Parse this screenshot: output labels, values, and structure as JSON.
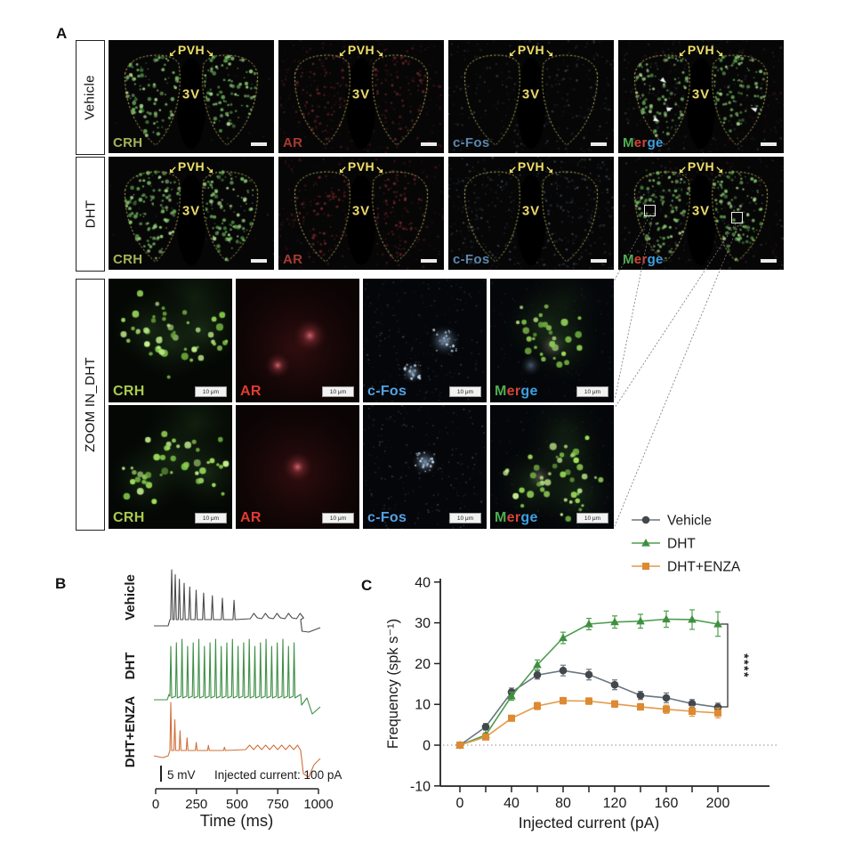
{
  "figure": {
    "panel_a_label": "A",
    "panel_b_label": "B",
    "panel_c_label": "C"
  },
  "panel_a": {
    "region_label": "PVH",
    "arrow_left": "↙",
    "arrow_right": "↘",
    "ventricle_label": "3V",
    "rows": [
      {
        "side_label": "Vehicle"
      },
      {
        "side_label": "DHT"
      }
    ],
    "zoom_side_label": "ZOOM IN_DHT",
    "zoom_scale_label": "10 μm",
    "channels": [
      {
        "name": "CRH",
        "label_color": "#a4b258",
        "zoom_label_color": "#a9c94f"
      },
      {
        "name": "AR",
        "label_color": "#a63a32",
        "zoom_label_color": "#e23c2e"
      },
      {
        "name": "c-Fos",
        "label_color": "#5c86ad",
        "zoom_label_color": "#55a2e4"
      },
      {
        "name": "Merge",
        "parts": [
          {
            "text": "M",
            "color": "#4fae4f"
          },
          {
            "text": "er",
            "color": "#d84338"
          },
          {
            "text": "ge",
            "color": "#3f9fe0"
          }
        ]
      }
    ],
    "outline_color": "#cfc468",
    "label_color": "#ecd96b"
  },
  "panel_b": {
    "traces": [
      {
        "name": "Vehicle",
        "color": "#4a4a4a",
        "label_color": "#3c3c3c"
      },
      {
        "name": "DHT",
        "color": "#3f8f46",
        "label_color": "#3f8f46"
      },
      {
        "name": "DHT+ENZA",
        "color": "#d2703a",
        "label_color": "#d2812f"
      }
    ],
    "scale_bar_label": "5 mV",
    "stim_label": "Injected current: 100 pA",
    "x_ticks": [
      0,
      250,
      500,
      750,
      1000
    ],
    "xlabel": "Time (ms)"
  },
  "chart_data": {
    "type": "line",
    "x": [
      0,
      20,
      40,
      60,
      80,
      100,
      120,
      140,
      160,
      180,
      200
    ],
    "series": [
      {
        "name": "Vehicle",
        "marker": "circle",
        "line_color": "#6a7681",
        "marker_color": "#43484d",
        "values": [
          0,
          4.5,
          13,
          17.2,
          18.3,
          17.3,
          14.8,
          12.2,
          11.6,
          10.2,
          9.3
        ],
        "errors": [
          0.3,
          0.8,
          1,
          1,
          1.3,
          1.3,
          1.2,
          1,
          1.2,
          1,
          1
        ]
      },
      {
        "name": "DHT",
        "marker": "triangle",
        "line_color": "#4f9e4f",
        "marker_color": "#3f8f3f",
        "values": [
          0,
          2.5,
          12,
          19.7,
          26.3,
          29.7,
          30.2,
          30.4,
          30.9,
          30.8,
          29.7
        ],
        "errors": [
          0.3,
          0.5,
          1,
          1.2,
          1.4,
          1.4,
          1.5,
          1.7,
          2,
          2.4,
          3
        ]
      },
      {
        "name": "DHT+ENZA",
        "marker": "square",
        "line_color": "#e39a4a",
        "marker_color": "#dd8a33",
        "values": [
          0,
          2,
          6.6,
          9.6,
          10.9,
          10.8,
          10.1,
          9.4,
          8.8,
          8.3,
          7.9
        ],
        "errors": [
          0.3,
          0.4,
          0.7,
          0.9,
          0.8,
          0.8,
          0.8,
          0.8,
          1,
          1.2,
          1.2
        ]
      }
    ],
    "xlabel": "Injected current (pA)",
    "ylabel": "Frequency (spk s⁻¹)",
    "ylim": [
      -10,
      40
    ],
    "yticks": [
      -10,
      0,
      10,
      20,
      30,
      40
    ],
    "xticks_major": [
      0,
      40,
      80,
      120,
      160,
      200
    ],
    "xticks_minor": [
      20,
      60,
      100,
      140,
      180
    ],
    "zero_line": true,
    "significance": "****",
    "legend": [
      "Vehicle",
      "DHT",
      "DHT+ENZA"
    ]
  }
}
